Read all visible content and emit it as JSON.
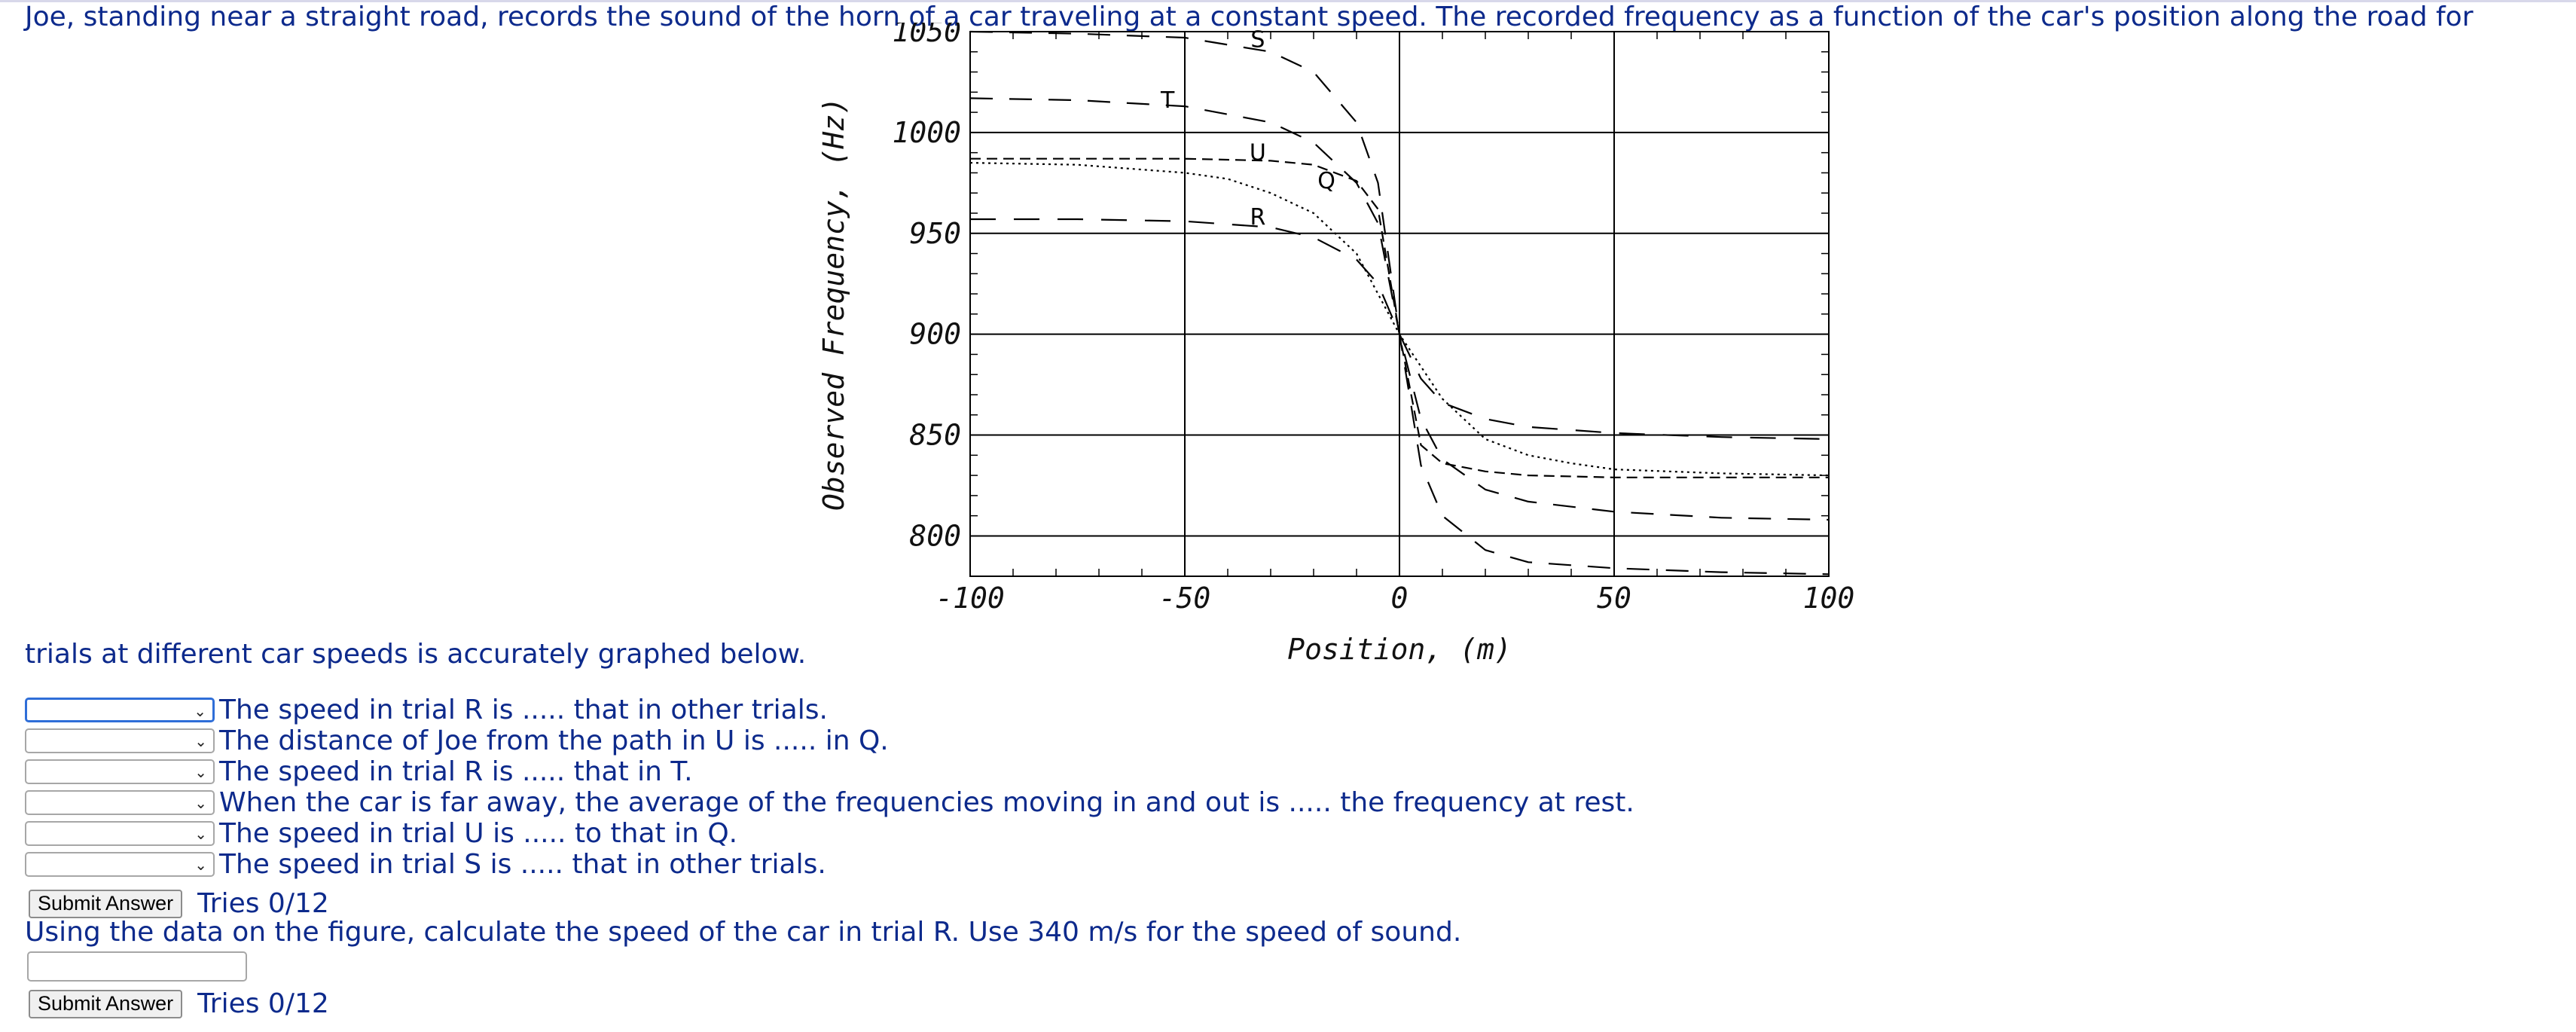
{
  "problem": {
    "intro": "Joe, standing near a straight road, records the sound of the horn of a car traveling at a constant speed. The recorded frequency as a function of the car's position along the road for",
    "intro_continued": "trials at different car speeds is accurately graphed below."
  },
  "questions": [
    {
      "text": "The speed in trial R is ..... that in other trials.",
      "selected": ""
    },
    {
      "text": "The distance of Joe from the path in U is ..... in Q.",
      "selected": ""
    },
    {
      "text": "The speed in trial R is ..... that in T.",
      "selected": ""
    },
    {
      "text": "When the car is far away, the average of the frequencies moving in and out is ..... the frequency at rest.",
      "selected": ""
    },
    {
      "text": "The speed in trial U is ..... to that in Q.",
      "selected": ""
    },
    {
      "text": "The speed in trial S is ..... that in other trials.",
      "selected": ""
    }
  ],
  "submit1": {
    "label": "Submit Answer",
    "tries": "Tries 0/12"
  },
  "part2": {
    "prompt": "Using the data on the figure, calculate the speed of the car in trial R. Use 340 m/s for the speed of sound.",
    "answer_value": "",
    "submit_label": "Submit Answer",
    "tries": "Tries 0/12"
  },
  "icons": {
    "dropdown": "chevron-down-icon"
  },
  "chart_data": {
    "type": "line",
    "xlabel": "Position, (m)",
    "ylabel": "Observed Frequency, (Hz)",
    "xlim": [
      -100,
      100
    ],
    "ylim": [
      780,
      1050
    ],
    "xticks": [
      -100,
      -50,
      0,
      50,
      100
    ],
    "yticks": [
      800,
      850,
      900,
      950,
      1000,
      1050
    ],
    "grid": true,
    "series": [
      {
        "name": "S",
        "approach": 1050,
        "recede": 780,
        "x": [
          -100,
          -75,
          -50,
          -30,
          -20,
          -10,
          -5,
          0,
          5,
          10,
          20,
          30,
          50,
          75,
          100
        ],
        "y": [
          1050,
          1049,
          1047,
          1040,
          1030,
          1005,
          975,
          900,
          835,
          810,
          793,
          787,
          784,
          782,
          781
        ]
      },
      {
        "name": "T",
        "approach": 1017,
        "recede": 808,
        "x": [
          -100,
          -75,
          -50,
          -30,
          -20,
          -10,
          -5,
          0,
          5,
          10,
          20,
          30,
          50,
          75,
          100
        ],
        "y": [
          1017,
          1016,
          1013,
          1005,
          995,
          975,
          955,
          900,
          858,
          838,
          823,
          817,
          812,
          809,
          808
        ]
      },
      {
        "name": "U",
        "approach": 987,
        "recede": 829,
        "x": [
          -100,
          -75,
          -50,
          -30,
          -20,
          -10,
          -5,
          0,
          5,
          10,
          20,
          30,
          50,
          75,
          100
        ],
        "y": [
          987,
          987,
          987,
          986,
          984,
          976,
          962,
          900,
          845,
          836,
          832,
          830,
          829,
          829,
          829
        ]
      },
      {
        "name": "Q",
        "approach": 985,
        "recede": 830,
        "x": [
          -100,
          -75,
          -50,
          -40,
          -30,
          -20,
          -10,
          0,
          10,
          20,
          30,
          40,
          50,
          75,
          100
        ],
        "y": [
          985,
          984,
          980,
          977,
          970,
          960,
          940,
          900,
          868,
          848,
          840,
          836,
          833,
          831,
          830
        ]
      },
      {
        "name": "R",
        "approach": 957,
        "recede": 848,
        "x": [
          -100,
          -75,
          -50,
          -30,
          -20,
          -10,
          -5,
          0,
          5,
          10,
          20,
          30,
          50,
          75,
          100
        ],
        "y": [
          957,
          957,
          956,
          953,
          948,
          937,
          925,
          900,
          878,
          866,
          858,
          854,
          851,
          849,
          848
        ]
      }
    ]
  }
}
